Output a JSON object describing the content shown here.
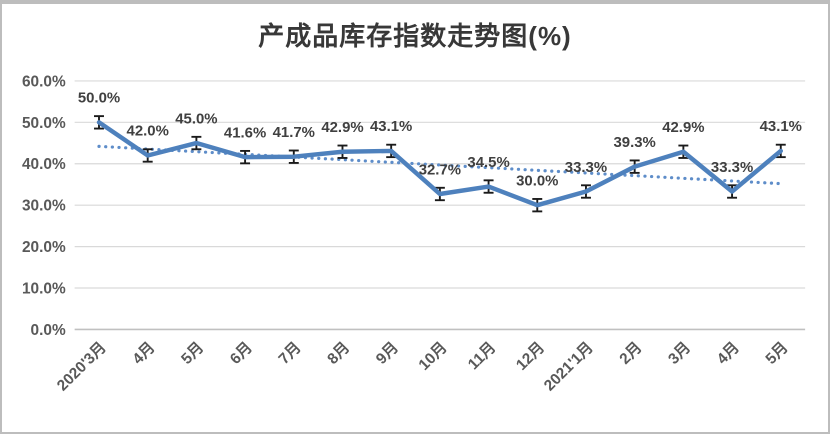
{
  "chart_data": {
    "type": "line",
    "title": "产成品库存指数走势图(%)",
    "categories": [
      "2020'3月",
      "4月",
      "5月",
      "6月",
      "7月",
      "8月",
      "9月",
      "10月",
      "11月",
      "12月",
      "2021'1月",
      "2月",
      "3月",
      "4月",
      "5月"
    ],
    "values": [
      50.0,
      42.0,
      45.0,
      41.6,
      41.7,
      42.9,
      43.1,
      32.7,
      34.5,
      30.0,
      33.3,
      39.3,
      42.9,
      33.3,
      43.1
    ],
    "point_labels": [
      "50.0%",
      "42.0%",
      "45.0%",
      "41.6%",
      "41.7%",
      "42.9%",
      "43.1%",
      "32.7%",
      "34.5%",
      "30.0%",
      "33.3%",
      "39.3%",
      "42.9%",
      "33.3%",
      "43.1%"
    ],
    "y_ticks": [
      {
        "value": 0,
        "label": "0.0%"
      },
      {
        "value": 10,
        "label": "10.0%"
      },
      {
        "value": 20,
        "label": "20.0%"
      },
      {
        "value": 30,
        "label": "30.0%"
      },
      {
        "value": 40,
        "label": "40.0%"
      },
      {
        "value": 50,
        "label": "50.0%"
      },
      {
        "value": 60,
        "label": "60.0%"
      }
    ],
    "ylim": [
      0,
      60
    ],
    "grid": true,
    "legend": "none",
    "xlabel": "",
    "ylabel": "",
    "error_bars": {
      "plus_minus": 1.5,
      "cap_half_width": 5
    },
    "trendline": {
      "type": "linear",
      "style": "dotted",
      "start_value": 44.2,
      "end_value": 35.2
    },
    "colors": {
      "series_line": "#4E81BD",
      "trendline": "#5E8DC9",
      "gridline": "#D9D9D9",
      "axis_line": "#C0C0C0",
      "error_bar": "#1A1A1A",
      "data_label": "#404040",
      "axis_label": "#595959",
      "title": "#383838",
      "frame_border": "#BDBDBD",
      "background": "#FFFFFF"
    }
  }
}
